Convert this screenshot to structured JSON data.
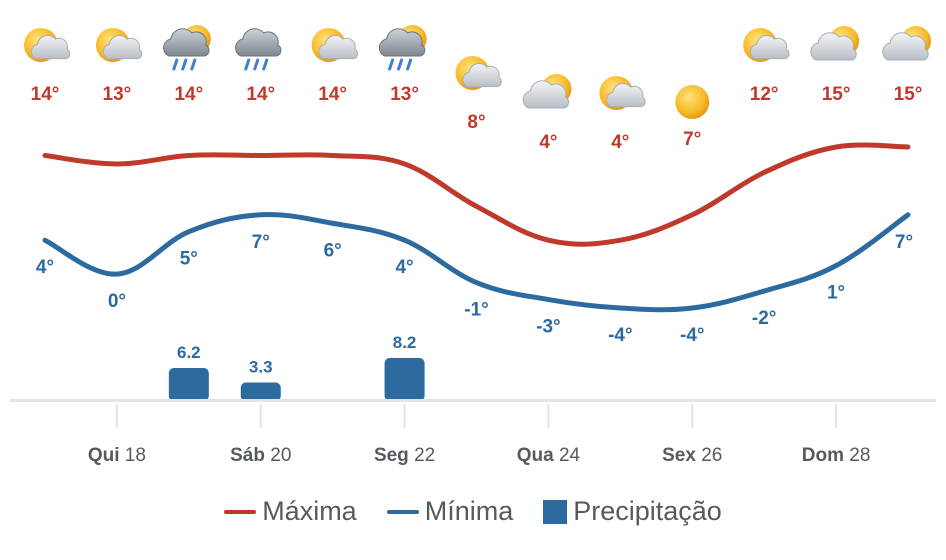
{
  "chart_data": {
    "type": "line",
    "days": [
      {
        "icon": "sun-cloud-icon",
        "max": "14°",
        "min": "4°",
        "precip": null
      },
      {
        "icon": "sun-cloud-icon",
        "max": "13°",
        "min": "0°",
        "precip": null
      },
      {
        "icon": "sun-cloud-rain-icon",
        "max": "14°",
        "min": "5°",
        "precip": "6.2"
      },
      {
        "icon": "cloud-rain-icon",
        "max": "14°",
        "min": "7°",
        "precip": "3.3"
      },
      {
        "icon": "sun-cloud-icon",
        "max": "14°",
        "min": "6°",
        "precip": null
      },
      {
        "icon": "sun-cloud-rain-icon",
        "max": "13°",
        "min": "4°",
        "precip": "8.2"
      },
      {
        "icon": "sun-cloud-icon",
        "max": "8°",
        "min": "-1°",
        "precip": null
      },
      {
        "icon": "cloud-sun-icon",
        "max": "4°",
        "min": "-3°",
        "precip": null
      },
      {
        "icon": "sun-cloud-icon",
        "max": "4°",
        "min": "-4°",
        "precip": null
      },
      {
        "icon": "sun-icon",
        "max": "7°",
        "min": "-4°",
        "precip": null
      },
      {
        "icon": "sun-cloud-icon",
        "max": "12°",
        "min": "-2°",
        "precip": null
      },
      {
        "icon": "cloud-sun-icon",
        "max": "15°",
        "min": "1°",
        "precip": null
      },
      {
        "icon": "cloud-sun-icon",
        "max": "15°",
        "min": "7°",
        "precip": null
      }
    ],
    "max_values": [
      14,
      13,
      14,
      14,
      14,
      13,
      8,
      4,
      4,
      7,
      12,
      15,
      15
    ],
    "min_values": [
      4,
      0,
      5,
      7,
      6,
      4,
      -1,
      -3,
      -4,
      -4,
      -2,
      1,
      7
    ],
    "precipitation": [
      0,
      0,
      6.2,
      3.3,
      0,
      8.2,
      0,
      0,
      0,
      0,
      0,
      0,
      0
    ],
    "x_ticks": [
      {
        "index": 1,
        "day": "Qui",
        "date": "18"
      },
      {
        "index": 3,
        "day": "Sáb",
        "date": "20"
      },
      {
        "index": 5,
        "day": "Seg",
        "date": "22"
      },
      {
        "index": 7,
        "day": "Qua",
        "date": "24"
      },
      {
        "index": 9,
        "day": "Sex",
        "date": "26"
      },
      {
        "index": 11,
        "day": "Dom",
        "date": "28"
      }
    ],
    "legend": [
      {
        "label": "Máxima",
        "color": "#c0392b",
        "kind": "line"
      },
      {
        "label": "Mínima",
        "color": "#2c6aa0",
        "kind": "line"
      },
      {
        "label": "Precipitação",
        "color": "#2c6aa0",
        "kind": "box"
      }
    ],
    "colors": {
      "max": "#c0392b",
      "min": "#2c6aa0",
      "precip": "#2c6aa0",
      "axis": "#e2e4e6",
      "text": "#555a60"
    }
  }
}
